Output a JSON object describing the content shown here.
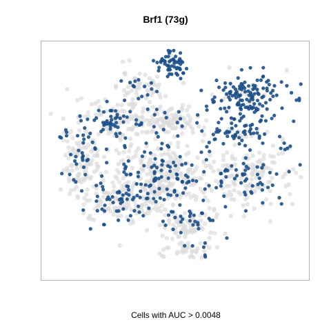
{
  "title": "Brf1 (73g)",
  "footer_label": "Cells with AUC > 0.0048",
  "colors": {
    "active": "#1b4f8a",
    "inactive": "#dcdcdc",
    "frame": "#b3b3b3"
  },
  "chart_data": {
    "type": "scatter",
    "title": "Brf1 (73g)",
    "xlabel": "",
    "ylabel": "",
    "legend": "none",
    "grid": false,
    "color_rule": "Cells with AUC > 0.0048",
    "regions": [
      {
        "cx": 0.48,
        "cy": 0.07,
        "rx": 0.06,
        "ry": 0.05,
        "n": 55,
        "active": 0.92
      },
      {
        "cx": 0.78,
        "cy": 0.22,
        "rx": 0.14,
        "ry": 0.1,
        "n": 160,
        "active": 0.85
      },
      {
        "cx": 0.72,
        "cy": 0.37,
        "rx": 0.1,
        "ry": 0.06,
        "n": 60,
        "active": 0.75
      },
      {
        "cx": 0.35,
        "cy": 0.17,
        "rx": 0.1,
        "ry": 0.07,
        "n": 70,
        "active": 0.2
      },
      {
        "cx": 0.26,
        "cy": 0.33,
        "rx": 0.12,
        "ry": 0.08,
        "n": 120,
        "active": 0.45
      },
      {
        "cx": 0.13,
        "cy": 0.48,
        "rx": 0.09,
        "ry": 0.16,
        "n": 150,
        "active": 0.25
      },
      {
        "cx": 0.47,
        "cy": 0.32,
        "rx": 0.12,
        "ry": 0.06,
        "n": 110,
        "active": 0.1
      },
      {
        "cx": 0.45,
        "cy": 0.57,
        "rx": 0.2,
        "ry": 0.16,
        "n": 380,
        "active": 0.25
      },
      {
        "cx": 0.28,
        "cy": 0.68,
        "rx": 0.14,
        "ry": 0.08,
        "n": 140,
        "active": 0.3
      },
      {
        "cx": 0.8,
        "cy": 0.57,
        "rx": 0.13,
        "ry": 0.13,
        "n": 180,
        "active": 0.25
      },
      {
        "cx": 0.55,
        "cy": 0.78,
        "rx": 0.11,
        "ry": 0.07,
        "n": 100,
        "active": 0.25
      },
      {
        "cx": 0.54,
        "cy": 0.9,
        "rx": 0.09,
        "ry": 0.04,
        "n": 45,
        "active": 0.15
      },
      {
        "cx": 0.92,
        "cy": 0.44,
        "rx": 0.03,
        "ry": 0.03,
        "n": 12,
        "active": 0.6
      }
    ]
  }
}
